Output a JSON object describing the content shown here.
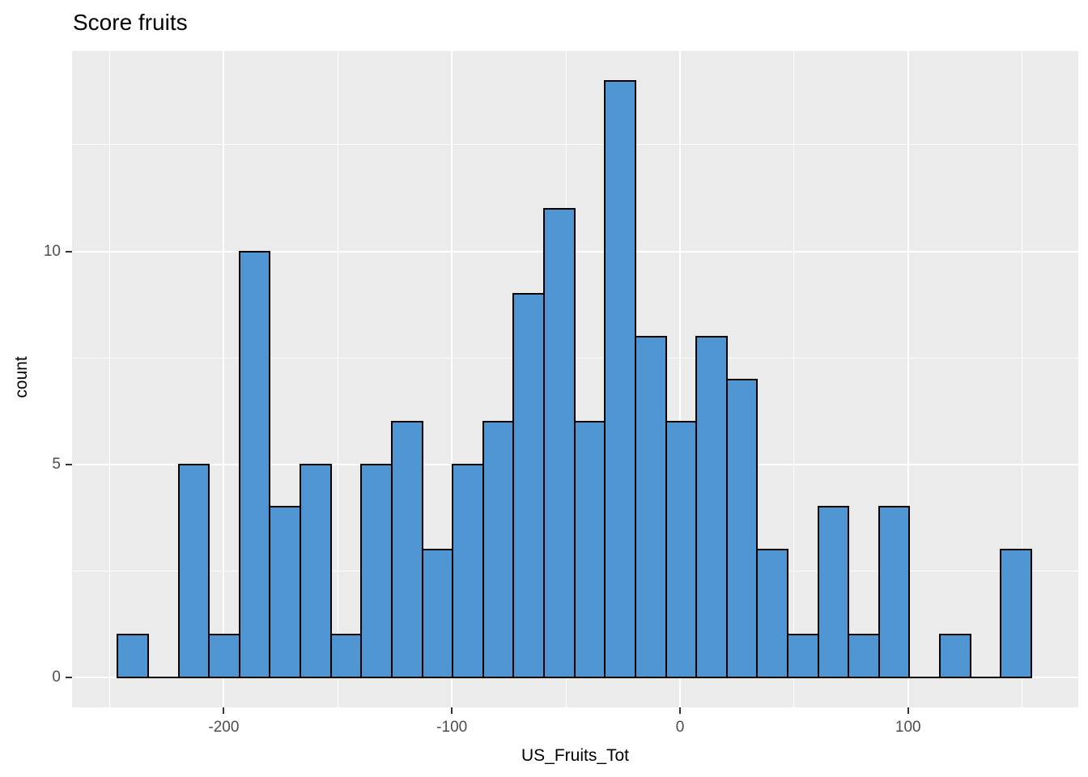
{
  "chart_data": {
    "type": "bar",
    "subtype": "histogram",
    "title": "Score fruits",
    "xlabel": "US_Fruits_Tot",
    "ylabel": "count",
    "bin_start": -246.5,
    "bin_width": 13.35,
    "counts": [
      1,
      0,
      5,
      1,
      10,
      4,
      5,
      1,
      5,
      6,
      3,
      5,
      6,
      9,
      11,
      6,
      14,
      8,
      6,
      8,
      7,
      3,
      1,
      4,
      1,
      4,
      0,
      1,
      0,
      3
    ],
    "x_ticks": [
      -200,
      -100,
      0,
      100
    ],
    "x_tick_labels": [
      "-200",
      "-100",
      "0",
      "100"
    ],
    "x_minor_gridlines": [
      -250,
      -150,
      -50,
      50,
      150
    ],
    "y_ticks": [
      0,
      5,
      10
    ],
    "y_tick_labels": [
      "0",
      "5",
      "10"
    ],
    "y_minor_gridlines": [
      2.5,
      7.5,
      12.5
    ],
    "xlim": [
      -266.5,
      174.6
    ],
    "ylim": [
      -0.7,
      14.7
    ],
    "grid": true,
    "legend": false,
    "colors": {
      "bar_fill": "#4F95D1",
      "bar_stroke": "#000000",
      "panel_background": "#EBEBEB",
      "gridline": "#FFFFFF",
      "tick_label": "#4D4D4D",
      "tick_mark": "#333333",
      "title_text": "#000000"
    }
  }
}
